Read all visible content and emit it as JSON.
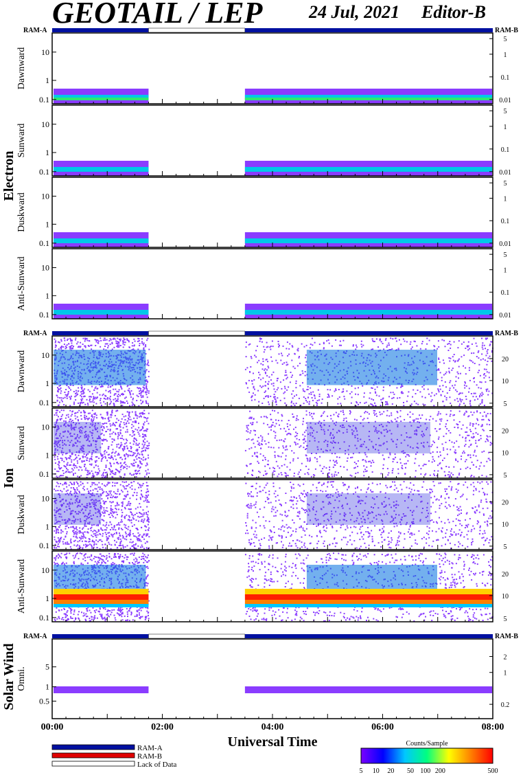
{
  "header": {
    "title": "GEOTAIL / LEP",
    "date": "24 Jul, 2021",
    "editor": "Editor-B"
  },
  "ram_labels": {
    "left": "RAM-A",
    "right": "RAM-B"
  },
  "groups": [
    {
      "id": "electron",
      "label": "Electron"
    },
    {
      "id": "ion",
      "label": "Ion"
    },
    {
      "id": "solar-wind",
      "label": "Solar Wind"
    }
  ],
  "chart_data": {
    "type": "heatmap",
    "xlabel": "Universal Time",
    "x_ticks": [
      "00:00",
      "02:00",
      "04:00",
      "06:00",
      "08:00"
    ],
    "x_range_hours": [
      0,
      8
    ],
    "data_gap_hours": [
      1.75,
      3.5
    ],
    "panels": [
      {
        "group": "Electron",
        "label": "Dawnward",
        "y_ticks": [
          "10",
          "1",
          "0.1"
        ],
        "y2_ticks": [
          "5",
          "1",
          "0.1",
          "0.01"
        ]
      },
      {
        "group": "Electron",
        "label": "Sunward",
        "y_ticks": [
          "10",
          "1",
          "0.1"
        ],
        "y2_ticks": [
          "5",
          "1",
          "0.1",
          "0.01"
        ]
      },
      {
        "group": "Electron",
        "label": "Duskward",
        "y_ticks": [
          "10",
          "1",
          "0.1"
        ],
        "y2_ticks": [
          "5",
          "1",
          "0.1",
          "0.01"
        ]
      },
      {
        "group": "Electron",
        "label": "Anti-Sunward",
        "y_ticks": [
          "10",
          "1",
          "0.1"
        ],
        "y2_ticks": [
          "5",
          "1",
          "0.1",
          "0.01"
        ]
      },
      {
        "group": "Ion",
        "label": "Dawnward",
        "y_ticks": [
          "10",
          "1",
          "0.1"
        ],
        "y2_ticks": [
          "20",
          "10",
          "5"
        ]
      },
      {
        "group": "Ion",
        "label": "Sunward",
        "y_ticks": [
          "10",
          "1",
          "0.1"
        ],
        "y2_ticks": [
          "20",
          "10",
          "5"
        ]
      },
      {
        "group": "Ion",
        "label": "Duskward",
        "y_ticks": [
          "10",
          "1",
          "0.1"
        ],
        "y2_ticks": [
          "20",
          "10",
          "5"
        ]
      },
      {
        "group": "Ion",
        "label": "Anti-Sunward",
        "y_ticks": [
          "10",
          "1",
          "0.1"
        ],
        "y2_ticks": [
          "20",
          "10",
          "5"
        ]
      },
      {
        "group": "Solar Wind",
        "label": "Omni.",
        "y_ticks": [
          "5",
          "1",
          "0.5"
        ],
        "y2_ticks": [
          "2",
          "1",
          "0.2"
        ]
      }
    ],
    "legend": [
      "RAM-A",
      "RAM-B",
      "Lack of Data"
    ],
    "colorbar": {
      "title": "Counts/Sample",
      "ticks": [
        "5",
        "10",
        "20",
        "50",
        "100",
        "200",
        "500"
      ],
      "colors": [
        "#7a00ff",
        "#0000ff",
        "#00c8ff",
        "#00ff80",
        "#ffff00",
        "#ff8000",
        "#ff0000"
      ]
    },
    "colors": {
      "ram_a": "#0010a0",
      "ram_b": "#e00000",
      "lack": "#ffffff",
      "low": "#8a3cff"
    }
  }
}
